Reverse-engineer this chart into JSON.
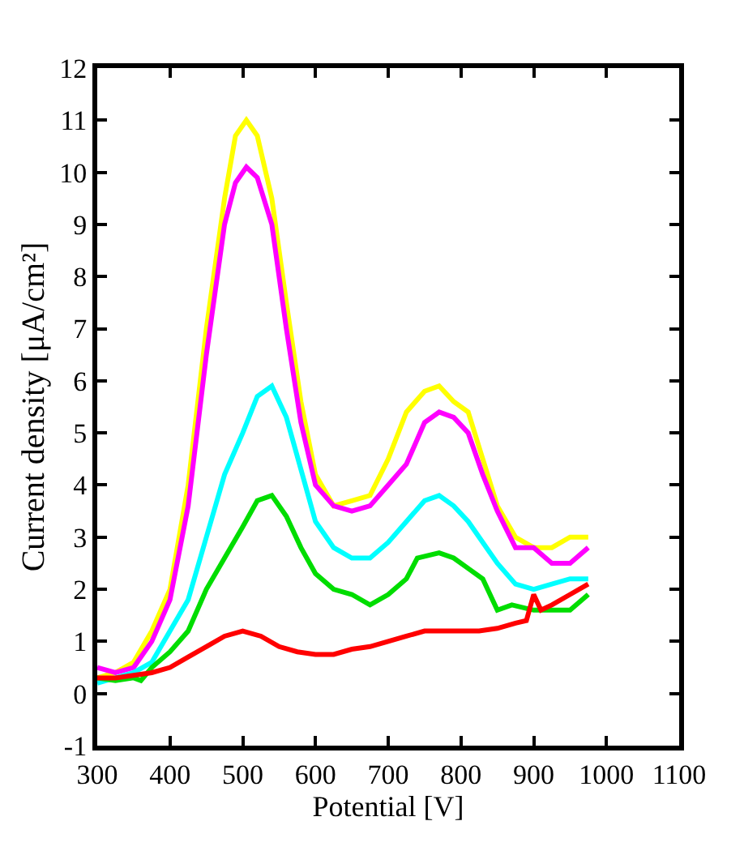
{
  "chart_data": {
    "type": "line",
    "xlabel": "Potential [V]",
    "ylabel": "Current density [μA/cm²]",
    "xlim": [
      300,
      1100
    ],
    "xticks": [
      300,
      400,
      500,
      600,
      700,
      800,
      900,
      1000,
      1100
    ],
    "ylim": [
      -1,
      12
    ],
    "yticks": [
      -1,
      0,
      1,
      2,
      3,
      4,
      5,
      6,
      7,
      8,
      9,
      10,
      11,
      12
    ],
    "marker": "none",
    "line_style": "solid",
    "series": [
      {
        "color": "#ffff00",
        "x": [
          300,
          325,
          350,
          375,
          400,
          425,
          450,
          475,
          490,
          505,
          520,
          540,
          560,
          580,
          600,
          625,
          650,
          675,
          700,
          725,
          750,
          770,
          790,
          810,
          830,
          850,
          875,
          900,
          925,
          950,
          975
        ],
        "values": [
          0.3,
          0.4,
          0.6,
          1.2,
          2.0,
          4.0,
          7.0,
          9.5,
          10.7,
          11.0,
          10.7,
          9.5,
          7.5,
          5.6,
          4.2,
          3.6,
          3.7,
          3.8,
          4.5,
          5.4,
          5.8,
          5.9,
          5.6,
          5.4,
          4.5,
          3.6,
          3.0,
          2.8,
          2.8,
          3.0,
          3.0
        ]
      },
      {
        "color": "#ff00ff",
        "x": [
          300,
          325,
          350,
          375,
          400,
          425,
          450,
          475,
          490,
          505,
          520,
          540,
          560,
          580,
          600,
          625,
          650,
          675,
          700,
          725,
          750,
          770,
          790,
          810,
          830,
          850,
          875,
          900,
          925,
          950,
          975
        ],
        "values": [
          0.5,
          0.4,
          0.5,
          1.0,
          1.8,
          3.6,
          6.5,
          9.0,
          9.8,
          10.1,
          9.9,
          9.0,
          7.0,
          5.2,
          4.0,
          3.6,
          3.5,
          3.6,
          4.0,
          4.4,
          5.2,
          5.4,
          5.3,
          5.0,
          4.2,
          3.5,
          2.8,
          2.8,
          2.5,
          2.5,
          2.8
        ]
      },
      {
        "color": "#00ffff",
        "x": [
          300,
          325,
          350,
          375,
          400,
          425,
          450,
          475,
          500,
          520,
          540,
          560,
          580,
          600,
          625,
          650,
          675,
          700,
          725,
          750,
          770,
          790,
          810,
          830,
          850,
          875,
          900,
          925,
          950,
          975
        ],
        "values": [
          0.2,
          0.3,
          0.4,
          0.6,
          1.2,
          1.8,
          3.0,
          4.2,
          5.0,
          5.7,
          5.9,
          5.3,
          4.3,
          3.3,
          2.8,
          2.6,
          2.6,
          2.9,
          3.3,
          3.7,
          3.8,
          3.6,
          3.3,
          2.9,
          2.5,
          2.1,
          2.0,
          2.1,
          2.2,
          2.2
        ]
      },
      {
        "color": "#00dd00",
        "x": [
          300,
          325,
          350,
          360,
          375,
          400,
          425,
          450,
          475,
          500,
          520,
          540,
          560,
          580,
          600,
          625,
          650,
          675,
          700,
          725,
          740,
          770,
          790,
          810,
          830,
          850,
          870,
          900,
          925,
          950,
          975
        ],
        "values": [
          0.3,
          0.25,
          0.3,
          0.25,
          0.5,
          0.8,
          1.2,
          2.0,
          2.6,
          3.2,
          3.7,
          3.8,
          3.4,
          2.8,
          2.3,
          2.0,
          1.9,
          1.7,
          1.9,
          2.2,
          2.6,
          2.7,
          2.6,
          2.4,
          2.2,
          1.6,
          1.7,
          1.6,
          1.6,
          1.6,
          1.9
        ]
      },
      {
        "color": "#ff0000",
        "x": [
          300,
          325,
          350,
          375,
          400,
          425,
          450,
          475,
          500,
          525,
          550,
          575,
          600,
          625,
          650,
          675,
          700,
          725,
          750,
          775,
          800,
          825,
          850,
          875,
          890,
          900,
          910,
          925,
          950,
          975
        ],
        "values": [
          0.3,
          0.3,
          0.35,
          0.4,
          0.5,
          0.7,
          0.9,
          1.1,
          1.2,
          1.1,
          0.9,
          0.8,
          0.75,
          0.75,
          0.85,
          0.9,
          1.0,
          1.1,
          1.2,
          1.2,
          1.2,
          1.2,
          1.25,
          1.35,
          1.4,
          1.9,
          1.6,
          1.7,
          1.9,
          2.1
        ]
      }
    ]
  }
}
